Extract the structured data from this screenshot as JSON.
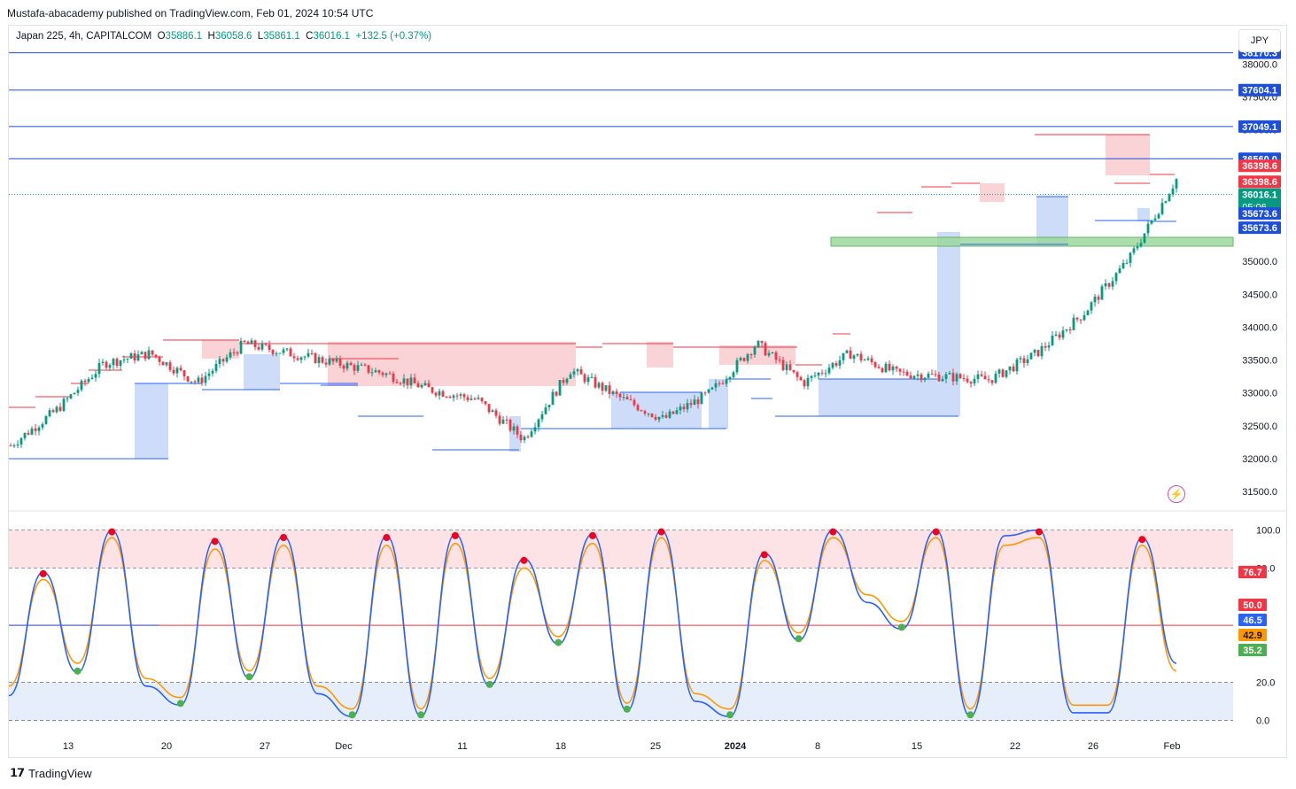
{
  "publisher_line": "Mustafa-abacademy published on TradingView.com, Feb 01, 2024 10:54 UTC",
  "symbol": {
    "name": "Japan 225, 4h, CAPITALCOM",
    "open_label": "O",
    "open": "35886.1",
    "high_label": "H",
    "high": "36058.6",
    "low_label": "L",
    "low": "35861.1",
    "close_label": "C",
    "close": "36016.1",
    "change": "+132.5 (+0.37%)"
  },
  "currency": "JPY",
  "brand": "TradingView",
  "colors": {
    "up": "#089981",
    "down": "#f23645",
    "level_line": "#2962ff",
    "supply_zone": "#f7c4c8",
    "demand_zone": "#c4d6f7",
    "support_zone": "#9ed89e",
    "stoch_k": "#2962ff",
    "stoch_d": "#ff9800",
    "mid_line": "#f23645"
  },
  "chart_data": [
    {
      "type": "line",
      "panel": "price",
      "ylim": [
        31300,
        38300
      ],
      "y_ticks": [
        "38000.0",
        "37500.0",
        "37000.0",
        "36500.0",
        "36000.0",
        "35500.0",
        "35000.0",
        "34500.0",
        "34000.0",
        "33500.0",
        "33000.0",
        "32500.0",
        "32000.0",
        "31500.0"
      ],
      "x_tick_labels": [
        "13",
        "20",
        "27",
        "Dec",
        "11",
        "18",
        "25",
        "2024",
        "8",
        "15",
        "22",
        "26",
        "Feb"
      ],
      "x": [
        0,
        0.04,
        0.08,
        0.12,
        0.16,
        0.2,
        0.24,
        0.28,
        0.32,
        0.36,
        0.4,
        0.44,
        0.48,
        0.52,
        0.56,
        0.6,
        0.64,
        0.68,
        0.72,
        0.76,
        0.8,
        0.84,
        0.88,
        0.92,
        0.96,
        1.0
      ],
      "close": [
        32200,
        32750,
        33450,
        33600,
        33150,
        33750,
        33600,
        33450,
        33300,
        33050,
        32900,
        32300,
        33350,
        32950,
        32600,
        33000,
        33750,
        33150,
        33600,
        33300,
        33250,
        33200,
        33600,
        34200,
        35050,
        36250
      ],
      "horizontal_levels": [
        "38170.3",
        "37604.1",
        "37049.1",
        "36560.0"
      ],
      "price_labels": [
        {
          "text": "38170.3",
          "kind": "level"
        },
        {
          "text": "37604.1",
          "kind": "level"
        },
        {
          "text": "37049.1",
          "kind": "level"
        },
        {
          "text": "36560.0",
          "kind": "level"
        },
        {
          "text": "36398.6",
          "kind": "resistance"
        },
        {
          "text": "36398.6",
          "kind": "resistance"
        },
        {
          "text": "36016.1",
          "kind": "last",
          "countdown": "05:06"
        },
        {
          "text": "35673.6",
          "kind": "support"
        },
        {
          "text": "35673.6",
          "kind": "support"
        }
      ]
    },
    {
      "type": "line",
      "panel": "stochastic",
      "ylim": [
        -3,
        104
      ],
      "y_ticks": [
        "100.0",
        "80.0",
        "20.0",
        "0.0"
      ],
      "bands": {
        "overbought": [
          80,
          100
        ],
        "oversold": [
          0,
          20
        ]
      },
      "mid_level": 50,
      "series": [
        {
          "values": [
            13,
            78,
            25,
            100,
            18,
            8,
            95,
            22,
            97,
            14,
            2,
            97,
            2,
            98,
            18,
            85,
            40,
            98,
            5,
            100,
            10,
            2,
            88,
            42,
            100,
            62,
            48,
            100,
            2,
            97,
            100,
            4,
            4,
            96,
            30
          ]
        },
        {
          "values": [
            18,
            74,
            30,
            96,
            22,
            12,
            90,
            26,
            92,
            18,
            6,
            92,
            6,
            93,
            22,
            80,
            44,
            93,
            9,
            96,
            14,
            6,
            84,
            46,
            96,
            66,
            52,
            96,
            6,
            92,
            96,
            8,
            8,
            92,
            26
          ]
        }
      ],
      "value_labels": [
        {
          "text": "76.7",
          "kind": "down"
        },
        {
          "text": "50.0",
          "kind": "mid"
        },
        {
          "text": "46.5",
          "kind": "k"
        },
        {
          "text": "42.9",
          "kind": "d"
        },
        {
          "text": "35.2",
          "kind": "signal"
        }
      ]
    }
  ]
}
